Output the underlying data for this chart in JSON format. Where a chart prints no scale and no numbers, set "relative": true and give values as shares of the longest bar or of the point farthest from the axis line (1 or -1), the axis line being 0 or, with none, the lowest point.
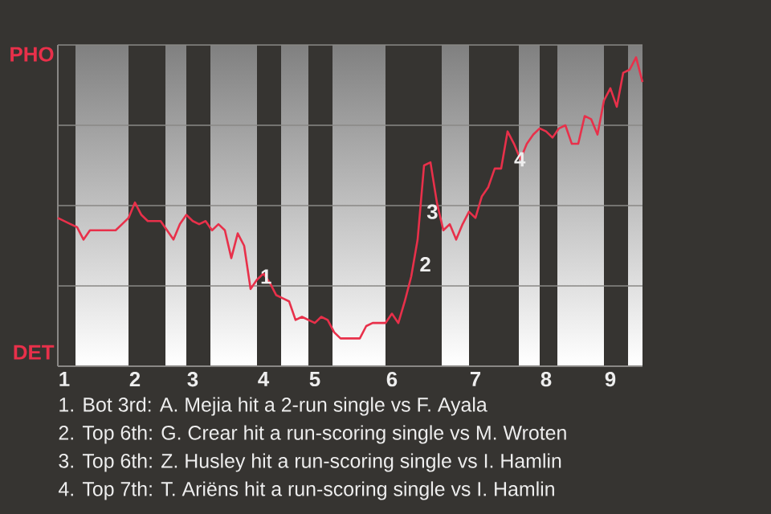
{
  "chart_data": {
    "type": "line",
    "relative": true,
    "categories": [
      null,
      "1",
      null,
      null,
      null,
      null,
      null,
      null,
      null,
      null,
      null,
      null,
      "2",
      null,
      null,
      null,
      null,
      null,
      null,
      null,
      null,
      "3",
      null,
      null,
      null,
      null,
      null,
      null,
      null,
      null,
      null,
      null,
      "4",
      null,
      null,
      null,
      null,
      null,
      null,
      null,
      "5",
      null,
      null,
      null,
      null,
      null,
      null,
      null,
      null,
      null,
      null,
      null,
      "6",
      null,
      null,
      null,
      null,
      null,
      null,
      null,
      null,
      null,
      null,
      null,
      null,
      "7",
      null,
      null,
      null,
      null,
      null,
      null,
      null,
      null,
      null,
      null,
      "8",
      null,
      null,
      null,
      null,
      null,
      null,
      null,
      null,
      null,
      "9",
      null,
      null,
      null,
      null,
      null
    ],
    "series": [
      {
        "color": "#e8304a",
        "values": [
          0.48,
          0.47,
          0.46,
          0.45,
          0.41,
          0.44,
          0.44,
          0.44,
          0.44,
          0.44,
          0.46,
          0.48,
          0.53,
          0.49,
          0.47,
          0.47,
          0.47,
          0.44,
          0.41,
          0.46,
          0.49,
          0.47,
          0.46,
          0.47,
          0.44,
          0.46,
          0.44,
          0.35,
          0.43,
          0.39,
          0.25,
          0.28,
          0.3,
          0.27,
          0.23,
          0.22,
          0.21,
          0.15,
          0.16,
          0.15,
          0.14,
          0.16,
          0.15,
          0.11,
          0.09,
          0.09,
          0.09,
          0.09,
          0.13,
          0.14,
          0.14,
          0.14,
          0.17,
          0.14,
          0.21,
          0.29,
          0.41,
          0.65,
          0.66,
          0.53,
          0.44,
          0.46,
          0.41,
          0.46,
          0.5,
          0.48,
          0.55,
          0.58,
          0.64,
          0.64,
          0.76,
          0.72,
          0.67,
          0.72,
          0.75,
          0.77,
          0.76,
          0.74,
          0.77,
          0.78,
          0.72,
          0.72,
          0.81,
          0.8,
          0.75,
          0.86,
          0.9,
          0.84,
          0.95,
          0.96,
          1,
          0.92
        ]
      }
    ],
    "grid": "y",
    "annotations": [
      "PHO",
      "DET",
      {
        "text": "1",
        "y": 0.29
      },
      "2",
      {
        "text": "3",
        "y": 0.5
      },
      {
        "text": "4",
        "y": 0.67
      },
      "1. Bot 3rd: A. Mejia hit a 2-run single vs F. Ayala",
      "2. Top 6th: G. Crear hit a run-scoring single vs M. Wroten",
      "3. Top 6th: Z. Husley hit a run-scoring single vs I. Hamlin",
      "4. Top 7th: T. Ariëns hit a run-scoring single vs I. Hamlin"
    ]
  }
}
